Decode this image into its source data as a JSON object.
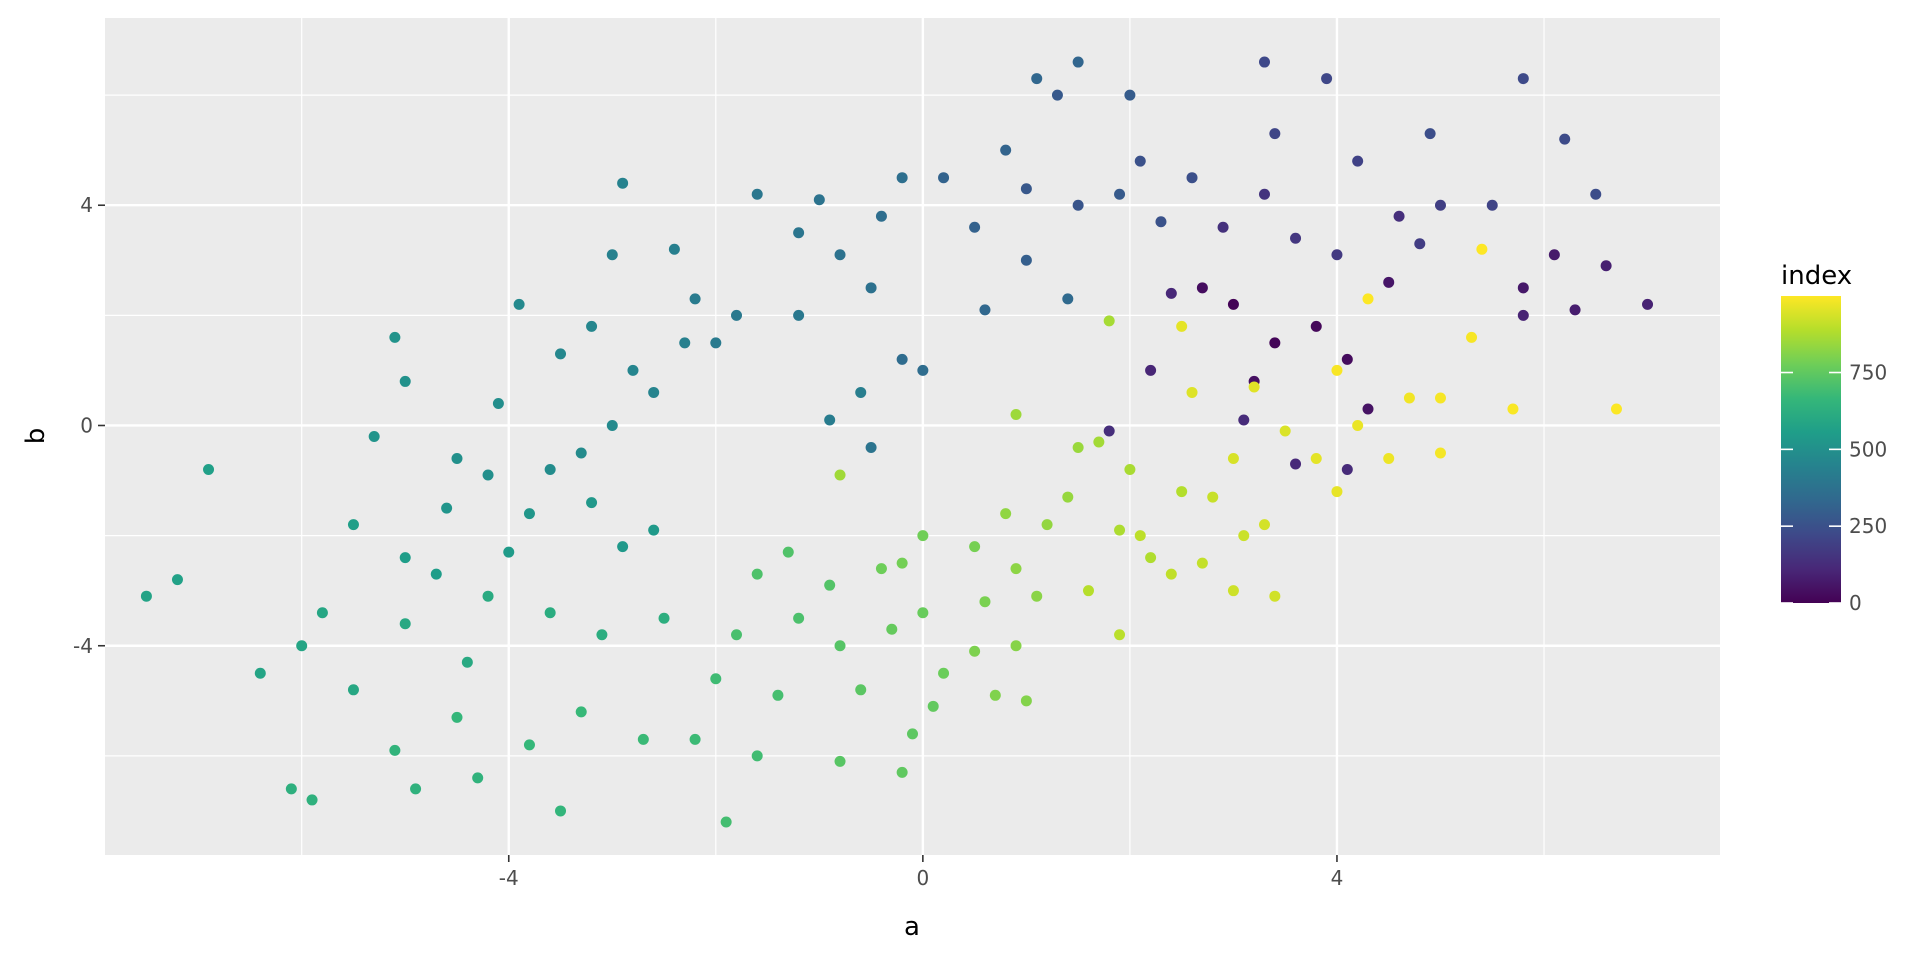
{
  "chart_data": {
    "type": "scatter",
    "title": "",
    "xlabel": "a",
    "ylabel": "b",
    "xlim": [
      -7.9,
      7.7
    ],
    "ylim": [
      -7.8,
      7.4
    ],
    "x_ticks": [
      -4,
      0,
      4
    ],
    "y_ticks": [
      -4,
      0,
      4
    ],
    "grid": true,
    "legend": {
      "title": "index",
      "placement": "right",
      "type": "colorbar",
      "range": [
        0,
        999
      ],
      "ticks": [
        0,
        250,
        500,
        750
      ],
      "colors": [
        "#440154",
        "#482878",
        "#3e4989",
        "#31688e",
        "#26828e",
        "#1f9e89",
        "#35b779",
        "#6ece58",
        "#b5de2b",
        "#fde725"
      ]
    },
    "points": [
      {
        "a": 3.0,
        "b": 2.2,
        "index": 5
      },
      {
        "a": 3.4,
        "b": 1.5,
        "index": 12
      },
      {
        "a": 3.8,
        "b": 1.8,
        "index": 20
      },
      {
        "a": 4.1,
        "b": 1.2,
        "index": 28
      },
      {
        "a": 2.7,
        "b": 2.5,
        "index": 35
      },
      {
        "a": 3.2,
        "b": 0.8,
        "index": 42
      },
      {
        "a": 4.3,
        "b": 0.3,
        "index": 50
      },
      {
        "a": 4.5,
        "b": 2.6,
        "index": 58
      },
      {
        "a": 5.8,
        "b": 2.5,
        "index": 65
      },
      {
        "a": 6.1,
        "b": 3.1,
        "index": 72
      },
      {
        "a": 6.3,
        "b": 2.1,
        "index": 80
      },
      {
        "a": 6.6,
        "b": 2.9,
        "index": 88
      },
      {
        "a": 7.0,
        "b": 2.2,
        "index": 95
      },
      {
        "a": 5.8,
        "b": 2.0,
        "index": 100
      },
      {
        "a": 2.2,
        "b": 1.0,
        "index": 105
      },
      {
        "a": 2.4,
        "b": 2.4,
        "index": 110
      },
      {
        "a": 3.6,
        "b": -0.7,
        "index": 115
      },
      {
        "a": 4.1,
        "b": -0.8,
        "index": 120
      },
      {
        "a": 3.1,
        "b": 0.1,
        "index": 125
      },
      {
        "a": 1.8,
        "b": -0.1,
        "index": 130
      },
      {
        "a": 4.6,
        "b": 3.8,
        "index": 135
      },
      {
        "a": 2.9,
        "b": 3.6,
        "index": 140
      },
      {
        "a": 3.3,
        "b": 4.2,
        "index": 150
      },
      {
        "a": 3.6,
        "b": 3.4,
        "index": 160
      },
      {
        "a": 4.0,
        "b": 3.1,
        "index": 170
      },
      {
        "a": 4.8,
        "b": 3.3,
        "index": 180
      },
      {
        "a": 5.0,
        "b": 4.0,
        "index": 190
      },
      {
        "a": 4.2,
        "b": 4.8,
        "index": 200
      },
      {
        "a": 5.5,
        "b": 4.0,
        "index": 205
      },
      {
        "a": 3.4,
        "b": 5.3,
        "index": 210
      },
      {
        "a": 3.9,
        "b": 6.3,
        "index": 215
      },
      {
        "a": 3.3,
        "b": 6.6,
        "index": 220
      },
      {
        "a": 5.8,
        "b": 6.3,
        "index": 225
      },
      {
        "a": 6.2,
        "b": 5.2,
        "index": 230
      },
      {
        "a": 6.5,
        "b": 4.2,
        "index": 235
      },
      {
        "a": 4.9,
        "b": 5.3,
        "index": 240
      },
      {
        "a": 2.6,
        "b": 4.5,
        "index": 245
      },
      {
        "a": 2.1,
        "b": 4.8,
        "index": 250
      },
      {
        "a": 2.3,
        "b": 3.7,
        "index": 255
      },
      {
        "a": 1.5,
        "b": 4.0,
        "index": 265
      },
      {
        "a": 1.0,
        "b": 4.3,
        "index": 275
      },
      {
        "a": 1.3,
        "b": 6.0,
        "index": 280
      },
      {
        "a": 1.9,
        "b": 4.2,
        "index": 285
      },
      {
        "a": 2.0,
        "b": 6.0,
        "index": 290
      },
      {
        "a": 1.0,
        "b": 3.0,
        "index": 300
      },
      {
        "a": 0.5,
        "b": 3.6,
        "index": 310
      },
      {
        "a": 0.2,
        "b": 4.5,
        "index": 315
      },
      {
        "a": 0.8,
        "b": 5.0,
        "index": 320
      },
      {
        "a": 1.5,
        "b": 6.6,
        "index": 325
      },
      {
        "a": 1.1,
        "b": 6.3,
        "index": 330
      },
      {
        "a": 0.6,
        "b": 2.1,
        "index": 335
      },
      {
        "a": 1.4,
        "b": 2.3,
        "index": 340
      },
      {
        "a": -0.2,
        "b": 1.2,
        "index": 350
      },
      {
        "a": 0.0,
        "b": 1.0,
        "index": 355
      },
      {
        "a": -0.4,
        "b": 3.8,
        "index": 360
      },
      {
        "a": -0.2,
        "b": 4.5,
        "index": 365
      },
      {
        "a": -0.5,
        "b": 2.5,
        "index": 370
      },
      {
        "a": -0.8,
        "b": 3.1,
        "index": 375
      },
      {
        "a": -1.0,
        "b": 4.1,
        "index": 380
      },
      {
        "a": -0.5,
        "b": -0.4,
        "index": 385
      },
      {
        "a": -1.2,
        "b": 3.5,
        "index": 390
      },
      {
        "a": -1.6,
        "b": 4.2,
        "index": 395
      },
      {
        "a": -1.2,
        "b": 2.0,
        "index": 400
      },
      {
        "a": -1.8,
        "b": 2.0,
        "index": 405
      },
      {
        "a": -2.0,
        "b": 1.5,
        "index": 410
      },
      {
        "a": -2.2,
        "b": 2.3,
        "index": 415
      },
      {
        "a": -0.9,
        "b": 0.1,
        "index": 420
      },
      {
        "a": -0.6,
        "b": 0.6,
        "index": 425
      },
      {
        "a": -2.4,
        "b": 3.2,
        "index": 430
      },
      {
        "a": -2.3,
        "b": 1.5,
        "index": 435
      },
      {
        "a": -3.0,
        "b": 3.1,
        "index": 440
      },
      {
        "a": -2.9,
        "b": 4.4,
        "index": 445
      },
      {
        "a": -2.6,
        "b": 0.6,
        "index": 450
      },
      {
        "a": -2.8,
        "b": 1.0,
        "index": 455
      },
      {
        "a": -3.2,
        "b": 1.8,
        "index": 460
      },
      {
        "a": -3.5,
        "b": 1.3,
        "index": 465
      },
      {
        "a": -3.9,
        "b": 2.2,
        "index": 470
      },
      {
        "a": -3.0,
        "b": 0.0,
        "index": 475
      },
      {
        "a": -3.3,
        "b": -0.5,
        "index": 480
      },
      {
        "a": -3.6,
        "b": -0.8,
        "index": 485
      },
      {
        "a": -4.1,
        "b": 0.4,
        "index": 490
      },
      {
        "a": -4.2,
        "b": -0.9,
        "index": 495
      },
      {
        "a": -4.5,
        "b": -0.6,
        "index": 500
      },
      {
        "a": -5.0,
        "b": 0.8,
        "index": 505
      },
      {
        "a": -5.1,
        "b": 1.6,
        "index": 510
      },
      {
        "a": -5.3,
        "b": -0.2,
        "index": 515
      },
      {
        "a": -4.6,
        "b": -1.5,
        "index": 520
      },
      {
        "a": -3.8,
        "b": -1.6,
        "index": 525
      },
      {
        "a": -3.2,
        "b": -1.4,
        "index": 530
      },
      {
        "a": -2.9,
        "b": -2.2,
        "index": 535
      },
      {
        "a": -2.6,
        "b": -1.9,
        "index": 540
      },
      {
        "a": -4.0,
        "b": -2.3,
        "index": 545
      },
      {
        "a": -4.7,
        "b": -2.7,
        "index": 550
      },
      {
        "a": -5.0,
        "b": -2.4,
        "index": 555
      },
      {
        "a": -5.5,
        "b": -1.8,
        "index": 560
      },
      {
        "a": -6.9,
        "b": -0.8,
        "index": 565
      },
      {
        "a": -7.2,
        "b": -2.8,
        "index": 570
      },
      {
        "a": -7.5,
        "b": -3.1,
        "index": 575
      },
      {
        "a": -6.4,
        "b": -4.5,
        "index": 580
      },
      {
        "a": -6.0,
        "b": -4.0,
        "index": 585
      },
      {
        "a": -5.8,
        "b": -3.4,
        "index": 590
      },
      {
        "a": -5.5,
        "b": -4.8,
        "index": 595
      },
      {
        "a": -5.0,
        "b": -3.6,
        "index": 600
      },
      {
        "a": -4.4,
        "b": -4.3,
        "index": 605
      },
      {
        "a": -4.2,
        "b": -3.1,
        "index": 610
      },
      {
        "a": -3.6,
        "b": -3.4,
        "index": 615
      },
      {
        "a": -3.1,
        "b": -3.8,
        "index": 620
      },
      {
        "a": -2.5,
        "b": -3.5,
        "index": 625
      },
      {
        "a": -6.1,
        "b": -6.6,
        "index": 630
      },
      {
        "a": -5.9,
        "b": -6.8,
        "index": 635
      },
      {
        "a": -4.9,
        "b": -6.6,
        "index": 640
      },
      {
        "a": -4.3,
        "b": -6.4,
        "index": 645
      },
      {
        "a": -5.1,
        "b": -5.9,
        "index": 650
      },
      {
        "a": -3.5,
        "b": -7.0,
        "index": 655
      },
      {
        "a": -4.5,
        "b": -5.3,
        "index": 660
      },
      {
        "a": -3.8,
        "b": -5.8,
        "index": 665
      },
      {
        "a": -3.3,
        "b": -5.2,
        "index": 670
      },
      {
        "a": -2.7,
        "b": -5.7,
        "index": 675
      },
      {
        "a": -2.2,
        "b": -5.7,
        "index": 680
      },
      {
        "a": -2.0,
        "b": -4.6,
        "index": 685
      },
      {
        "a": -1.6,
        "b": -6.0,
        "index": 690
      },
      {
        "a": -1.9,
        "b": -7.2,
        "index": 695
      },
      {
        "a": -1.4,
        "b": -4.9,
        "index": 700
      },
      {
        "a": -1.8,
        "b": -3.8,
        "index": 705
      },
      {
        "a": -1.2,
        "b": -3.5,
        "index": 710
      },
      {
        "a": -1.6,
        "b": -2.7,
        "index": 715
      },
      {
        "a": -1.3,
        "b": -2.3,
        "index": 720
      },
      {
        "a": -0.9,
        "b": -2.9,
        "index": 725
      },
      {
        "a": -0.8,
        "b": -4.0,
        "index": 730
      },
      {
        "a": -0.8,
        "b": -6.1,
        "index": 735
      },
      {
        "a": -0.6,
        "b": -4.8,
        "index": 740
      },
      {
        "a": -0.1,
        "b": -5.6,
        "index": 745
      },
      {
        "a": -0.2,
        "b": -6.3,
        "index": 750
      },
      {
        "a": 0.1,
        "b": -5.1,
        "index": 755
      },
      {
        "a": -0.3,
        "b": -3.7,
        "index": 760
      },
      {
        "a": 0.0,
        "b": -3.4,
        "index": 765
      },
      {
        "a": 0.2,
        "b": -4.5,
        "index": 770
      },
      {
        "a": -0.4,
        "b": -2.6,
        "index": 775
      },
      {
        "a": 0.0,
        "b": -2.0,
        "index": 780
      },
      {
        "a": -0.2,
        "b": -2.5,
        "index": 785
      },
      {
        "a": 0.5,
        "b": -2.2,
        "index": 790
      },
      {
        "a": 0.6,
        "b": -3.2,
        "index": 795
      },
      {
        "a": 0.5,
        "b": -4.1,
        "index": 800
      },
      {
        "a": 0.7,
        "b": -4.9,
        "index": 805
      },
      {
        "a": 1.0,
        "b": -5.0,
        "index": 810
      },
      {
        "a": 0.9,
        "b": -4.0,
        "index": 815
      },
      {
        "a": 1.1,
        "b": -3.1,
        "index": 820
      },
      {
        "a": 0.9,
        "b": -2.6,
        "index": 825
      },
      {
        "a": 0.8,
        "b": -1.6,
        "index": 830
      },
      {
        "a": 1.2,
        "b": -1.8,
        "index": 835
      },
      {
        "a": 1.4,
        "b": -1.3,
        "index": 840
      },
      {
        "a": 1.5,
        "b": -0.4,
        "index": 845
      },
      {
        "a": 0.9,
        "b": 0.2,
        "index": 850
      },
      {
        "a": -0.8,
        "b": -0.9,
        "index": 855
      },
      {
        "a": 1.7,
        "b": -0.3,
        "index": 860
      },
      {
        "a": 1.8,
        "b": 1.9,
        "index": 865
      },
      {
        "a": 2.0,
        "b": -0.8,
        "index": 870
      },
      {
        "a": 1.9,
        "b": -1.9,
        "index": 875
      },
      {
        "a": 2.2,
        "b": -2.4,
        "index": 880
      },
      {
        "a": 2.5,
        "b": -1.2,
        "index": 885
      },
      {
        "a": 1.6,
        "b": -3.0,
        "index": 890
      },
      {
        "a": 1.9,
        "b": -3.8,
        "index": 895
      },
      {
        "a": 2.1,
        "b": -2.0,
        "index": 900
      },
      {
        "a": 2.4,
        "b": -2.7,
        "index": 905
      },
      {
        "a": 2.7,
        "b": -2.5,
        "index": 910
      },
      {
        "a": 2.8,
        "b": -1.3,
        "index": 915
      },
      {
        "a": 3.1,
        "b": -2.0,
        "index": 920
      },
      {
        "a": 3.0,
        "b": -3.0,
        "index": 925
      },
      {
        "a": 3.4,
        "b": -3.1,
        "index": 930
      },
      {
        "a": 3.3,
        "b": -1.8,
        "index": 935
      },
      {
        "a": 3.0,
        "b": -0.6,
        "index": 940
      },
      {
        "a": 3.5,
        "b": -0.1,
        "index": 945
      },
      {
        "a": 2.6,
        "b": 0.6,
        "index": 950
      },
      {
        "a": 3.2,
        "b": 0.7,
        "index": 955
      },
      {
        "a": 3.8,
        "b": -0.6,
        "index": 960
      },
      {
        "a": 4.0,
        "b": -1.2,
        "index": 965
      },
      {
        "a": 4.2,
        "b": 0.0,
        "index": 970
      },
      {
        "a": 4.5,
        "b": -0.6,
        "index": 975
      },
      {
        "a": 4.7,
        "b": 0.5,
        "index": 980
      },
      {
        "a": 5.0,
        "b": -0.5,
        "index": 985
      },
      {
        "a": 5.0,
        "b": 0.5,
        "index": 988
      },
      {
        "a": 5.3,
        "b": 1.6,
        "index": 990
      },
      {
        "a": 5.7,
        "b": 0.3,
        "index": 993
      },
      {
        "a": 6.7,
        "b": 0.3,
        "index": 996
      },
      {
        "a": 5.4,
        "b": 3.2,
        "index": 999
      },
      {
        "a": 4.3,
        "b": 2.3,
        "index": 997
      },
      {
        "a": 4.0,
        "b": 1.0,
        "index": 992
      },
      {
        "a": 2.5,
        "b": 1.8,
        "index": 962
      }
    ]
  }
}
